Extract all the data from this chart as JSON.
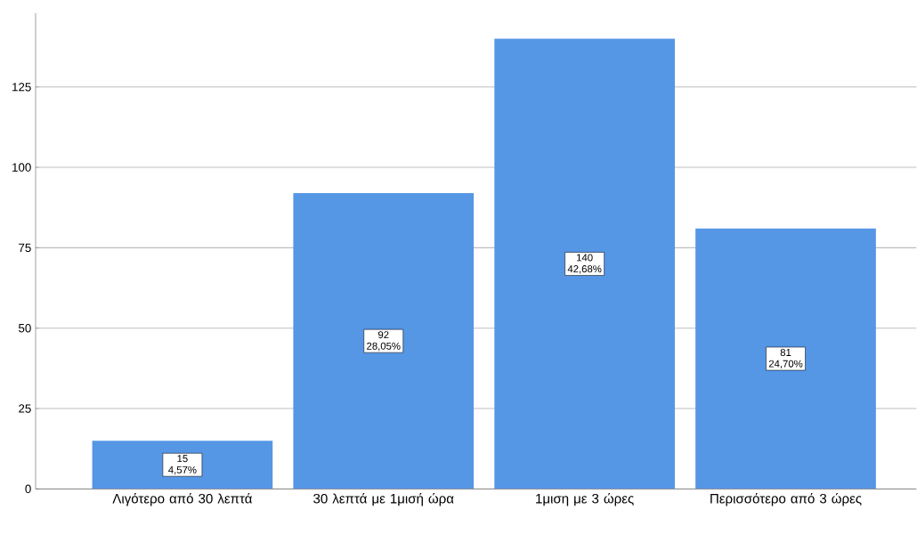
{
  "chart_data": {
    "type": "bar",
    "categories": [
      "Λιγότερο από 30 λεπτά",
      "30 λεπτά με 1μισή ώρα",
      "1μιση με 3 ώρες",
      "Περισσότερο από 3 ώρες"
    ],
    "values": [
      15,
      92,
      140,
      81
    ],
    "color": "#5596e5",
    "value_labels": [
      "15 4,57%",
      "92 28,05%",
      "140 42,68%",
      "81 24,70%"
    ],
    "ylim": [
      0,
      148
    ],
    "yticks": [
      0,
      25,
      50,
      75,
      100,
      125
    ],
    "grid": "y"
  }
}
